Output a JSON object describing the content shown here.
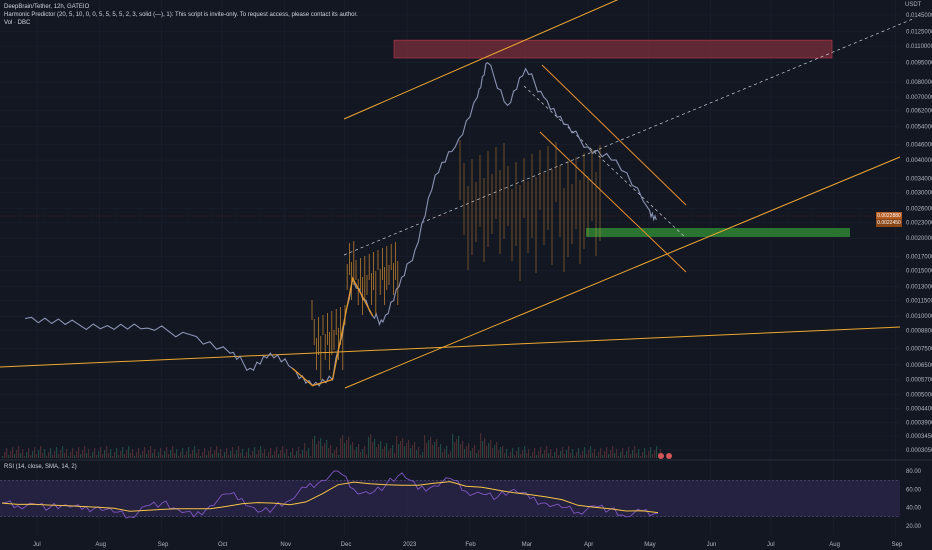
{
  "legend": {
    "symbol_line": "DeepBrain/Tether, 12h, GATEIO",
    "indicator_line": "Harmonic Predictor (20, 5, 10, 0, 0, 5, 5, 5, 5, 2, 3, solid (—), 1): This script is invite-only. To request access, please contact its author.",
    "volume_line": "Vol · DBC"
  },
  "rsi_legend": "RSI (14, close, SMA, 14, 2)",
  "currency": "USDT",
  "colors": {
    "background": "#131722",
    "price_line": "#8a93b2",
    "highlight": "#e0962f",
    "zone_red": "#7a2f3b",
    "zone_green": "#2e7d32",
    "trendline": "#f0a830",
    "channel": "#e98f2c",
    "dashed": "#c9cdd8",
    "rsi_line": "#7e57c2",
    "rsi_ma": "#f5c542",
    "rsi_band": "#2a2449",
    "current_price": "#b35a1f"
  },
  "chart_data": {
    "type": "line",
    "title": "DeepBrain/Tether, 12h, GATEIO",
    "ylabel": "USDT",
    "y_scale": "log",
    "ylim": [
      0.0003,
      0.016
    ],
    "x_ticks": [
      "Jul",
      "Aug",
      "Sep",
      "Oct",
      "Nov",
      "Dec",
      "2023",
      "Feb",
      "Mar",
      "Apr",
      "May",
      "Jun",
      "Jul",
      "Aug",
      "Sep"
    ],
    "y_ticks": [
      "0.0145000",
      "0.0125000",
      "0.0110000",
      "0.0095000",
      "0.0080000",
      "0.0070000",
      "0.0062000",
      "0.0054000",
      "0.0046000",
      "0.0040000",
      "0.0034000",
      "0.0030000",
      "0.0026000",
      "0.0023000",
      "0.0020000",
      "0.0017000",
      "0.0015000",
      "0.0013000",
      "0.0011500",
      "0.0010000",
      "0.0008800",
      "0.0007500",
      "0.0006500",
      "0.0005700",
      "0.0005000",
      "0.0004400",
      "0.0003900",
      "0.0003450",
      "0.0003050"
    ],
    "current_price_label": "0.0022880",
    "current_price_sub": "0.0022450",
    "current_price": 0.002288,
    "series": [
      {
        "x": [
          "2022-06-25",
          "2022-07-15",
          "2022-08-05",
          "2022-08-25",
          "2022-09-15",
          "2022-10-05",
          "2022-10-15",
          "2022-10-25",
          "2022-11-05",
          "2022-11-15",
          "2022-11-25",
          "2022-12-05",
          "2022-12-15",
          "2022-12-20",
          "2022-12-28",
          "2023-01-05",
          "2023-01-15",
          "2023-01-25",
          "2023-02-05",
          "2023-02-10",
          "2023-02-20",
          "2023-03-01",
          "2023-03-10",
          "2023-03-20",
          "2023-04-01",
          "2023-04-15",
          "2023-05-01",
          "2023-05-05"
        ],
        "values": [
          0.00098,
          0.00093,
          0.00092,
          0.0009,
          0.00085,
          0.00072,
          0.00063,
          0.00072,
          0.00063,
          0.00054,
          0.00057,
          0.0014,
          0.001,
          0.00095,
          0.0013,
          0.0018,
          0.0035,
          0.0045,
          0.007,
          0.0095,
          0.0065,
          0.009,
          0.007,
          0.0055,
          0.0045,
          0.004,
          0.0026,
          0.00235
        ]
      }
    ],
    "rsi": {
      "ticks": [
        "80.00",
        "60.00",
        "40.00",
        "20.00"
      ],
      "ylim": [
        10,
        90
      ],
      "values": [
        45,
        42,
        44,
        40,
        43,
        38,
        41,
        35,
        30,
        42,
        45,
        38,
        30,
        42,
        55,
        50,
        35,
        40,
        48,
        62,
        70,
        80,
        60,
        55,
        65,
        78,
        60,
        64,
        72,
        58,
        55,
        52,
        60,
        50,
        45,
        40,
        35,
        42,
        38,
        30,
        36,
        34
      ]
    },
    "zones": [
      {
        "type": "resistance",
        "from": 0.0099,
        "to": 0.0116
      },
      {
        "type": "support",
        "from": 0.00216,
        "to": 0.00236
      }
    ]
  },
  "price_badges": {
    "a": "⊕",
    "b": "⊕"
  }
}
